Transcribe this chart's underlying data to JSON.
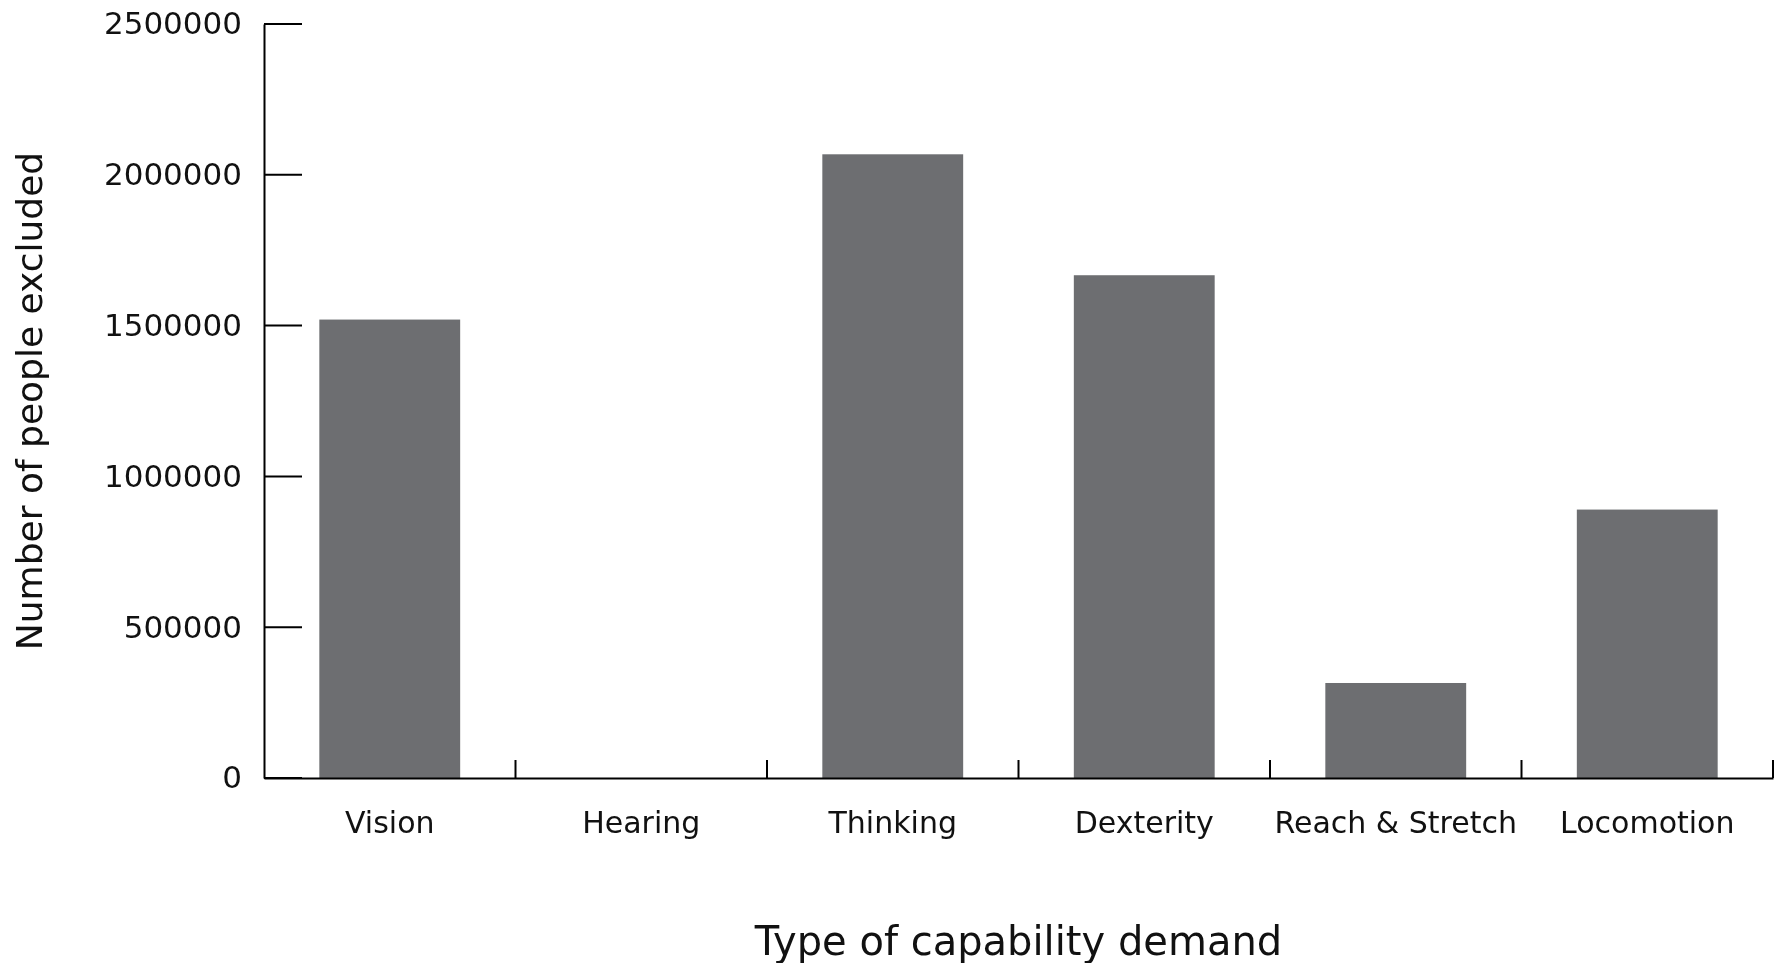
{
  "chart_data": {
    "type": "bar",
    "xlabel": "Type of capability demand",
    "ylabel": "Number of people excluded",
    "categories": [
      "Vision",
      "Hearing",
      "Thinking",
      "Dexterity",
      "Reach & Stretch",
      "Locomotion"
    ],
    "values": [
      1520000,
      0,
      2068000,
      1667000,
      315000,
      890000
    ],
    "color": "#6d6e71",
    "ylim": [
      0,
      2500000
    ],
    "yticks": [
      0,
      500000,
      1000000,
      1500000,
      2000000,
      2500000
    ],
    "grid": false
  }
}
